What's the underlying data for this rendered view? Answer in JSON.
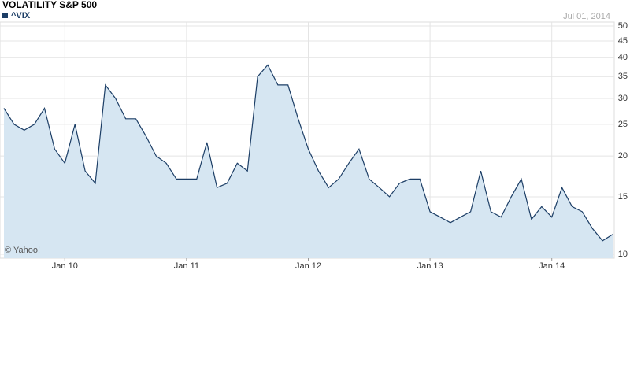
{
  "chart_data": {
    "type": "line",
    "title": "VOLATILITY S&P 500",
    "date_label": "Jul 01, 2014",
    "source": "© Yahoo!",
    "categories": [
      null,
      null,
      null,
      null,
      null,
      null,
      "Jan 10",
      null,
      null,
      null,
      null,
      null,
      null,
      null,
      null,
      null,
      null,
      null,
      "Jan 11",
      null,
      null,
      null,
      null,
      null,
      null,
      null,
      null,
      null,
      null,
      null,
      "Jan 12",
      null,
      null,
      null,
      null,
      null,
      null,
      null,
      null,
      null,
      null,
      null,
      "Jan 13",
      null,
      null,
      null,
      null,
      null,
      null,
      null,
      null,
      null,
      null,
      null,
      "Jan 14",
      null,
      null,
      null,
      null,
      null,
      null
    ],
    "series": [
      {
        "name": "^VIX",
        "color": "#1c3e66",
        "fill": "#d6e6f2",
        "values": [
          28,
          25,
          24,
          25,
          28,
          21,
          19,
          25,
          18,
          16.5,
          33,
          30,
          26,
          26,
          23,
          20,
          19,
          17,
          17,
          17,
          22,
          16,
          16.5,
          19,
          18,
          35,
          38,
          33,
          33,
          26,
          21,
          18,
          16,
          17,
          19,
          21,
          17,
          16,
          15,
          16.5,
          17,
          17,
          13.5,
          13,
          12.5,
          13,
          13.5,
          18,
          13.5,
          13,
          15,
          17,
          12.8,
          14,
          13,
          16,
          14,
          13.5,
          12,
          11,
          11.5
        ]
      }
    ],
    "ylim": [
      10,
      50
    ],
    "yticks": [
      10,
      15,
      20,
      25,
      30,
      35,
      40,
      45,
      50
    ],
    "log_scale": true,
    "grid": true
  }
}
